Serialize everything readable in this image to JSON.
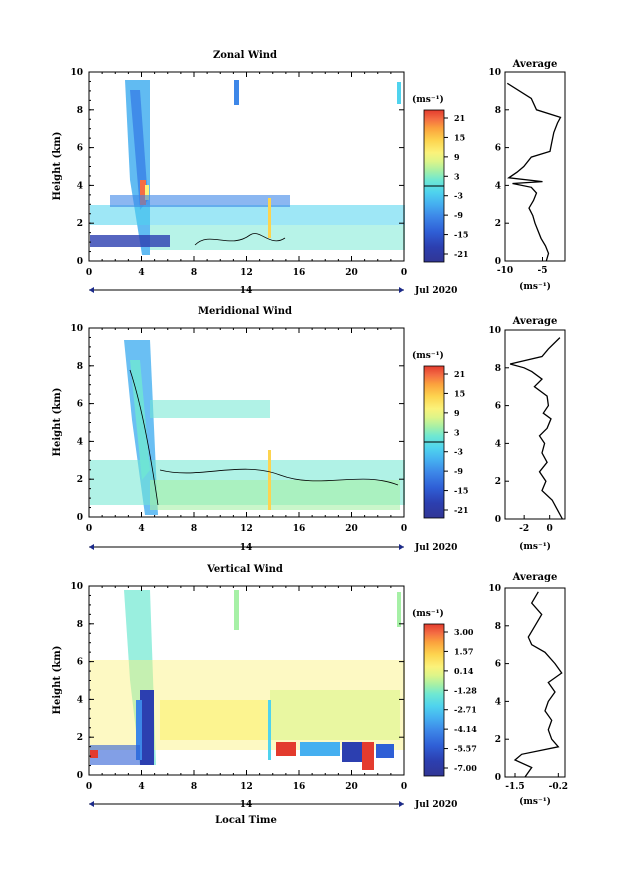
{
  "figure": {
    "colormap": [
      "#313695",
      "#2c3fb0",
      "#2f5fd6",
      "#3d87e8",
      "#45aff0",
      "#4fd3ee",
      "#6fe8d2",
      "#a6f0a6",
      "#dcf58a",
      "#fbf27a",
      "#fdd44f",
      "#fba23d",
      "#f46d43",
      "#e33b2e",
      "#c4001f"
    ],
    "line_color": "#000000"
  },
  "panels": [
    {
      "title": "Zonal Wind",
      "ylabel": "Height (km)",
      "y_ticks": [
        "0",
        "2",
        "4",
        "6",
        "8",
        "10"
      ],
      "x_ticks": [
        "0",
        "4",
        "8",
        "12",
        "16",
        "20",
        "0"
      ],
      "date_mid": "14",
      "date_right": "Jul 2020",
      "unit_label": "(ms⁻¹)",
      "colorbar_ticks": [
        "21",
        "15",
        "9",
        "3",
        "-3",
        "-9",
        "-15",
        "-21"
      ],
      "average": {
        "title": "Average",
        "xlabel": "(ms⁻¹)",
        "x_ticks": [
          "-10",
          "-5"
        ],
        "y_ticks": [
          "0",
          "2",
          "4",
          "6",
          "8",
          "10"
        ]
      }
    },
    {
      "title": "Meridional Wind",
      "ylabel": "Height (km)",
      "y_ticks": [
        "0",
        "2",
        "4",
        "6",
        "8",
        "10"
      ],
      "x_ticks": [
        "0",
        "4",
        "8",
        "12",
        "16",
        "20",
        "0"
      ],
      "date_mid": "14",
      "date_right": "Jul 2020",
      "unit_label": "(ms⁻¹)",
      "colorbar_ticks": [
        "21",
        "15",
        "9",
        "3",
        "-3",
        "-9",
        "-15",
        "-21"
      ],
      "average": {
        "title": "Average",
        "xlabel": "(ms⁻¹)",
        "x_ticks": [
          "-2",
          "0"
        ],
        "y_ticks": [
          "0",
          "2",
          "4",
          "6",
          "8",
          "10"
        ]
      }
    },
    {
      "title": "Vertical Wind",
      "ylabel": "Height (km)",
      "y_ticks": [
        "0",
        "2",
        "4",
        "6",
        "8",
        "10"
      ],
      "x_ticks": [
        "0",
        "4",
        "8",
        "12",
        "16",
        "20",
        "0"
      ],
      "date_mid": "14",
      "date_right": "Jul 2020",
      "unit_label": "(ms⁻¹)",
      "colorbar_ticks": [
        "3.00",
        "1.57",
        "0.14",
        "-1.28",
        "-2.71",
        "-4.14",
        "-5.57",
        "-7.00"
      ],
      "average": {
        "title": "Average",
        "xlabel": "(ms⁻¹)",
        "x_ticks": [
          "-1.5",
          "-0.2"
        ],
        "y_ticks": [
          "0",
          "2",
          "4",
          "6",
          "8",
          "10"
        ]
      }
    }
  ],
  "bottom_xlabel": "Local Time",
  "chart_data": [
    {
      "type": "heatmap",
      "title": "Zonal Wind",
      "ylabel": "Height (km)",
      "x_range_hours": [
        0,
        24
      ],
      "y_range_km": [
        0,
        10
      ],
      "colorbar_range": [
        -21,
        21
      ],
      "colorbar_unit": "(ms⁻¹)",
      "features": [
        {
          "desc": "tilted westward jet column",
          "hours": [
            3,
            5
          ],
          "km": [
            1,
            9.5
          ],
          "value": -9
        },
        {
          "desc": "low-level band",
          "hours": [
            2,
            24
          ],
          "km": [
            1.5,
            3
          ],
          "value": -3
        },
        {
          "desc": "strong easterly near surface",
          "hours": [
            0,
            6
          ],
          "km": [
            0.5,
            1.2
          ],
          "value": -18
        },
        {
          "desc": "patch at top",
          "hours": [
            11.2,
            11.6
          ],
          "km": [
            8,
            9.5
          ],
          "value": -9
        }
      ]
    },
    {
      "type": "line",
      "title": "Average",
      "xlabel": "(ms⁻¹)",
      "x_range": [
        -10,
        -2
      ],
      "y_range": [
        0,
        10
      ],
      "x": [
        -4.5,
        -4.2,
        -4.6,
        -5.2,
        -5.6,
        -6.0,
        -6.3,
        -6.8,
        -6.2,
        -5.8,
        -6.5,
        -9.0,
        -5.0,
        -9.5,
        -8.4,
        -7.5,
        -6.5,
        -4.0,
        -3.8,
        -3.5,
        -3.0,
        -2.6,
        -5.8,
        -6.5,
        -9.7
      ],
      "y": [
        0.0,
        0.4,
        0.8,
        1.2,
        1.6,
        2.0,
        2.4,
        2.8,
        3.2,
        3.6,
        3.9,
        4.1,
        4.2,
        4.4,
        4.7,
        5.0,
        5.5,
        5.8,
        6.2,
        6.8,
        7.3,
        7.6,
        8.0,
        8.6,
        9.4
      ]
    },
    {
      "type": "heatmap",
      "title": "Meridional Wind",
      "ylabel": "Height (km)",
      "x_range_hours": [
        0,
        24
      ],
      "y_range_km": [
        0,
        10
      ],
      "colorbar_range": [
        -21,
        21
      ],
      "colorbar_unit": "(ms⁻¹)",
      "features": [
        {
          "desc": "tilted column",
          "hours": [
            3,
            5
          ],
          "km": [
            1,
            9.5
          ],
          "value": -5
        },
        {
          "desc": "low-level band",
          "hours": [
            0,
            24
          ],
          "km": [
            0.3,
            3
          ],
          "value": 0
        },
        {
          "desc": "mid-level patch",
          "hours": [
            4,
            14
          ],
          "km": [
            5,
            6
          ],
          "value": -3
        }
      ]
    },
    {
      "type": "line",
      "title": "Average",
      "xlabel": "(ms⁻¹)",
      "x_range": [
        -3.5,
        1.2
      ],
      "y_range": [
        0,
        10
      ],
      "x": [
        1.0,
        0.6,
        0.2,
        -0.6,
        -0.3,
        -0.8,
        -0.2,
        -0.6,
        -0.4,
        -0.8,
        -0.2,
        0.1,
        -0.5,
        -0.1,
        -0.2,
        -1.2,
        -0.6,
        -1.4,
        -2.0,
        -3.1,
        -0.6,
        -0.1,
        0.8
      ],
      "y": [
        0.0,
        0.5,
        1.0,
        1.5,
        2.0,
        2.5,
        3.0,
        3.5,
        4.0,
        4.4,
        4.8,
        5.3,
        5.6,
        6.0,
        6.5,
        7.0,
        7.4,
        7.8,
        8.0,
        8.2,
        8.6,
        9.0,
        9.6
      ]
    },
    {
      "type": "heatmap",
      "title": "Vertical Wind",
      "ylabel": "Height (km)",
      "x_range_hours": [
        0,
        24
      ],
      "y_range_km": [
        0,
        10
      ],
      "colorbar_range": [
        -7.0,
        3.0
      ],
      "colorbar_unit": "(ms⁻¹)",
      "features": [
        {
          "desc": "strong downdraft column",
          "hours": [
            4,
            5
          ],
          "km": [
            0.5,
            4.5
          ],
          "value": -6
        },
        {
          "desc": "tilted plume",
          "hours": [
            3,
            5
          ],
          "km": [
            4.5,
            10
          ],
          "value": -2
        },
        {
          "desc": "broad near-zero region",
          "hours": [
            0,
            24
          ],
          "km": [
            0.5,
            6
          ],
          "value": 0
        },
        {
          "desc": "positive cells near surface",
          "hours": [
            14,
            22
          ],
          "km": [
            0.5,
            1.5
          ],
          "value": 2.5
        }
      ]
    },
    {
      "type": "line",
      "title": "Average",
      "xlabel": "(ms⁻¹)",
      "x_range": [
        -1.8,
        0.0
      ],
      "y_range": [
        0,
        10
      ],
      "x": [
        -1.2,
        -1.0,
        -1.5,
        -1.3,
        -0.2,
        -0.4,
        -0.5,
        -0.4,
        -0.6,
        -0.5,
        -0.3,
        -0.5,
        -0.1,
        -0.3,
        -0.6,
        -1.0,
        -1.1,
        -0.9,
        -0.7,
        -1.0,
        -0.8
      ],
      "y": [
        0.0,
        0.5,
        0.9,
        1.2,
        1.6,
        2.0,
        2.5,
        3.0,
        3.5,
        4.0,
        4.5,
        5.0,
        5.5,
        6.0,
        6.6,
        7.0,
        7.4,
        8.0,
        8.6,
        9.2,
        9.8
      ]
    }
  ]
}
